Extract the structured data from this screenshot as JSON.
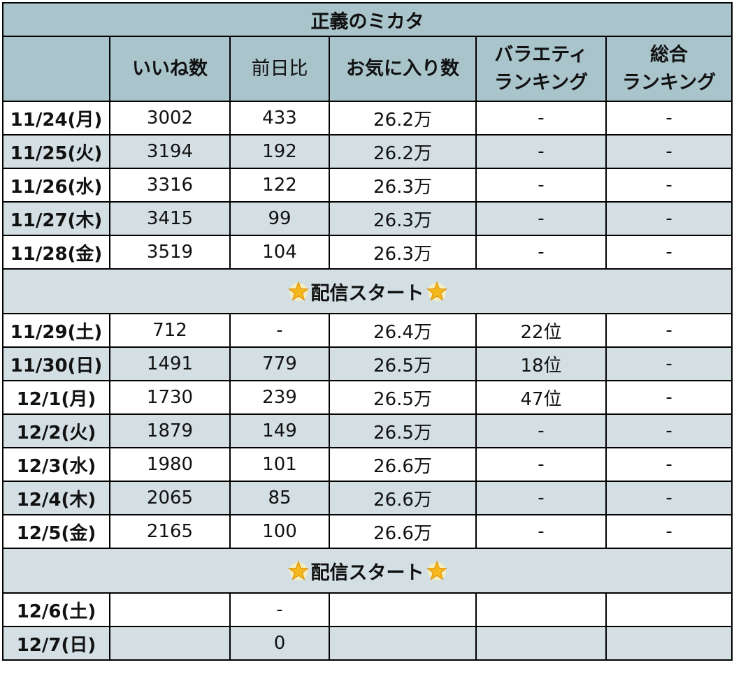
{
  "table": {
    "title": "正義のミカタ",
    "headers": [
      {
        "lines": [
          ""
        ]
      },
      {
        "lines": [
          "いいね数"
        ]
      },
      {
        "lines": [
          "前日比"
        ]
      },
      {
        "lines": [
          "お気に入り数"
        ]
      },
      {
        "lines": [
          "バラエティ",
          "ランキング"
        ]
      },
      {
        "lines": [
          "総合",
          "ランキング"
        ]
      }
    ],
    "banner_text": "配信スタート",
    "star_icon": "sparkling-star-icon",
    "colors": {
      "header_bg": "#a9c4cb",
      "row_alt_bg": "#d3dfe3",
      "row_bg": "#ffffff",
      "border": "#000000"
    },
    "block1": [
      {
        "date": "11/24(月)",
        "likes": "3002",
        "diff": "433",
        "favorites": "26.2万",
        "variety_rank": "-",
        "overall_rank": "-"
      },
      {
        "date": "11/25(火)",
        "likes": "3194",
        "diff": "192",
        "favorites": "26.2万",
        "variety_rank": "-",
        "overall_rank": "-"
      },
      {
        "date": "11/26(水)",
        "likes": "3316",
        "diff": "122",
        "favorites": "26.3万",
        "variety_rank": "-",
        "overall_rank": "-"
      },
      {
        "date": "11/27(木)",
        "likes": "3415",
        "diff": "99",
        "favorites": "26.3万",
        "variety_rank": "-",
        "overall_rank": "-"
      },
      {
        "date": "11/28(金)",
        "likes": "3519",
        "diff": "104",
        "favorites": "26.3万",
        "variety_rank": "-",
        "overall_rank": "-"
      }
    ],
    "block2": [
      {
        "date": "11/29(土)",
        "likes": "712",
        "diff": "-",
        "favorites": "26.4万",
        "variety_rank": "22位",
        "overall_rank": "-"
      },
      {
        "date": "11/30(日)",
        "likes": "1491",
        "diff": "779",
        "favorites": "26.5万",
        "variety_rank": "18位",
        "overall_rank": "-"
      },
      {
        "date": "12/1(月)",
        "likes": "1730",
        "diff": "239",
        "favorites": "26.5万",
        "variety_rank": "47位",
        "overall_rank": "-"
      },
      {
        "date": "12/2(火)",
        "likes": "1879",
        "diff": "149",
        "favorites": "26.5万",
        "variety_rank": "-",
        "overall_rank": "-"
      },
      {
        "date": "12/3(水)",
        "likes": "1980",
        "diff": "101",
        "favorites": "26.6万",
        "variety_rank": "-",
        "overall_rank": "-"
      },
      {
        "date": "12/4(木)",
        "likes": "2065",
        "diff": "85",
        "favorites": "26.6万",
        "variety_rank": "-",
        "overall_rank": "-"
      },
      {
        "date": "12/5(金)",
        "likes": "2165",
        "diff": "100",
        "favorites": "26.6万",
        "variety_rank": "-",
        "overall_rank": "-"
      }
    ],
    "block3": [
      {
        "date": "12/6(土)",
        "likes": "",
        "diff": "-",
        "favorites": "",
        "variety_rank": "",
        "overall_rank": ""
      },
      {
        "date": "12/7(日)",
        "likes": "",
        "diff": "0",
        "favorites": "",
        "variety_rank": "",
        "overall_rank": ""
      }
    ]
  }
}
